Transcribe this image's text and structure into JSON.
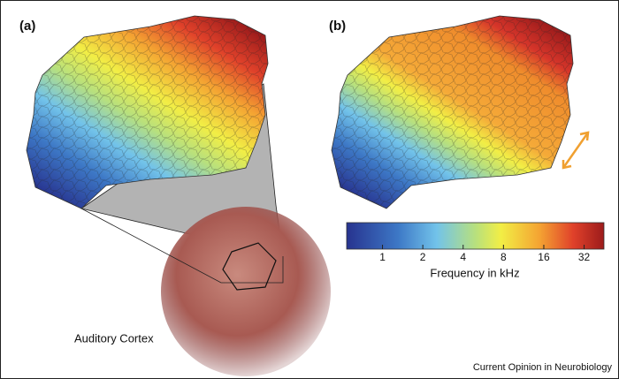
{
  "panel_a": {
    "label": "(a)",
    "caption": "Auditory Cortex"
  },
  "panel_b": {
    "label": "(b)"
  },
  "colorbar": {
    "label": "Frequency in kHz",
    "ticks": [
      1,
      2,
      4,
      8,
      16,
      32
    ],
    "lim": [
      0.54,
      45
    ],
    "log": true
  },
  "footer": "Current Opinion in Neurobiology"
}
